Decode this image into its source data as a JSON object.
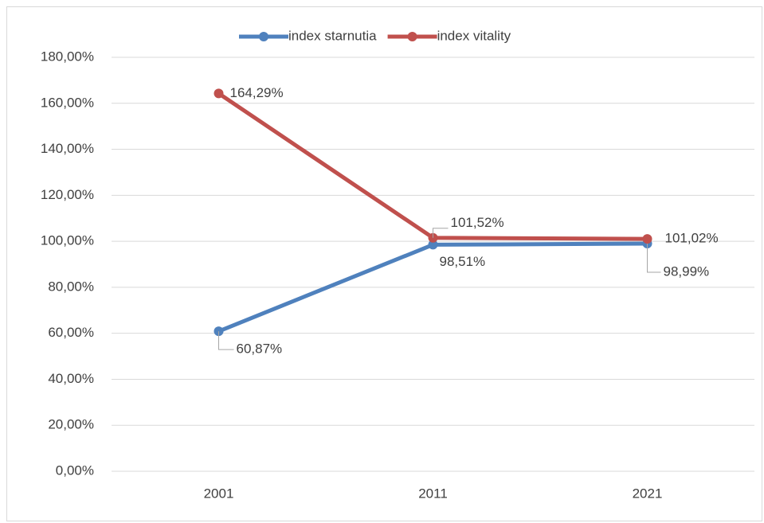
{
  "chart_data": {
    "type": "line",
    "categories": [
      "2001",
      "2011",
      "2021"
    ],
    "series": [
      {
        "name": "index starnutia",
        "color": "#4f81bd",
        "values": [
          60.87,
          98.51,
          98.99
        ],
        "value_labels": [
          "60,87%",
          "98,51%",
          "98,99%"
        ]
      },
      {
        "name": "index vitality",
        "color": "#c0504d",
        "values": [
          164.29,
          101.52,
          101.02
        ],
        "value_labels": [
          "164,29%",
          "101,52%",
          "101,02%"
        ]
      }
    ],
    "ylim": [
      0,
      180
    ],
    "yticks": [
      {
        "value": 0,
        "label": "0,00%"
      },
      {
        "value": 20,
        "label": "20,00%"
      },
      {
        "value": 40,
        "label": "40,00%"
      },
      {
        "value": 60,
        "label": "60,00%"
      },
      {
        "value": 80,
        "label": "80,00%"
      },
      {
        "value": 100,
        "label": "100,00%"
      },
      {
        "value": 120,
        "label": "120,00%"
      },
      {
        "value": 140,
        "label": "140,00%"
      },
      {
        "value": 160,
        "label": "160,00%"
      },
      {
        "value": 180,
        "label": "180,00%"
      }
    ],
    "grid": true,
    "legend": "top"
  }
}
